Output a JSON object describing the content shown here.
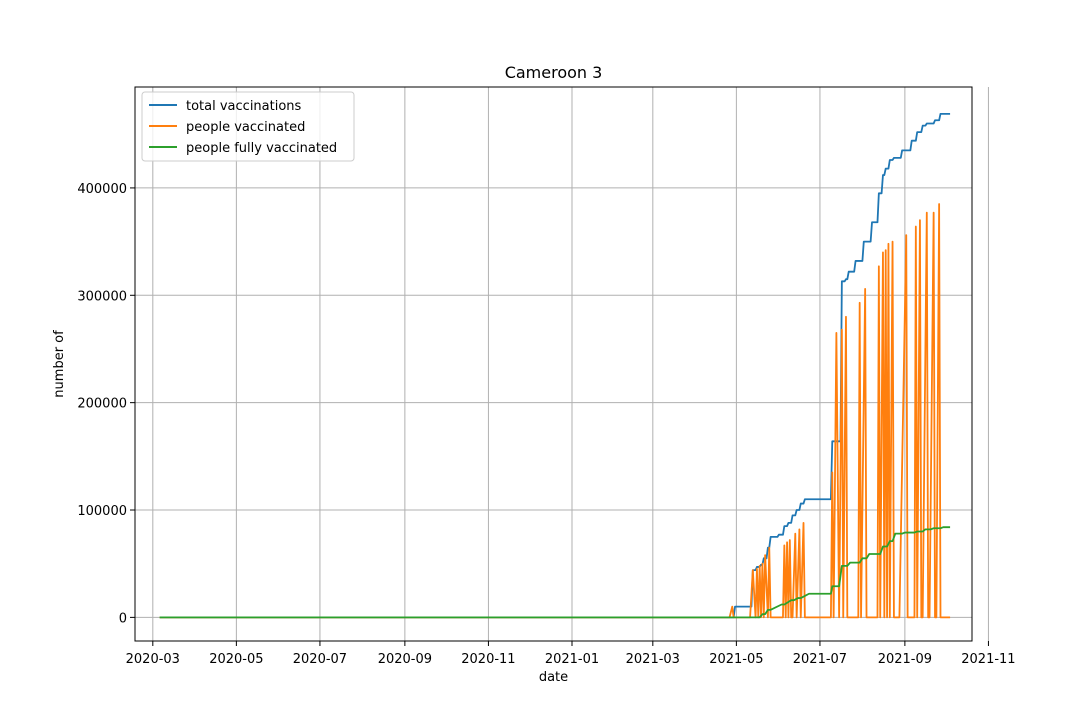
{
  "chart_data": {
    "type": "line",
    "title": "Cameroon 3",
    "xlabel": "date",
    "ylabel": "number of",
    "x_type": "date",
    "xlim": [
      "2020-02-17",
      "2021-10-20"
    ],
    "ylim": [
      -22000,
      494000
    ],
    "grid": true,
    "legend_position": "top-left",
    "x_ticks": [
      {
        "value": "2020-03-01",
        "label": "2020-03"
      },
      {
        "value": "2020-05-01",
        "label": "2020-05"
      },
      {
        "value": "2020-07-01",
        "label": "2020-07"
      },
      {
        "value": "2020-09-01",
        "label": "2020-09"
      },
      {
        "value": "2020-11-01",
        "label": "2020-11"
      },
      {
        "value": "2021-01-01",
        "label": "2021-01"
      },
      {
        "value": "2021-03-01",
        "label": "2021-03"
      },
      {
        "value": "2021-05-01",
        "label": "2021-05"
      },
      {
        "value": "2021-07-01",
        "label": "2021-07"
      },
      {
        "value": "2021-09-01",
        "label": "2021-09"
      },
      {
        "value": "2021-11-01",
        "label": "2021-11"
      }
    ],
    "y_ticks": [
      {
        "value": 0,
        "label": "0"
      },
      {
        "value": 100000,
        "label": "100000"
      },
      {
        "value": 200000,
        "label": "200000"
      },
      {
        "value": 300000,
        "label": "300000"
      },
      {
        "value": 400000,
        "label": "400000"
      }
    ],
    "series": [
      {
        "name": "total vaccinations",
        "color": "#1f77b4",
        "x": [
          "2020-03-06",
          "2021-04-12",
          "2021-04-29",
          "2021-04-30",
          "2021-05-12",
          "2021-05-13",
          "2021-05-15",
          "2021-05-16",
          "2021-05-18",
          "2021-05-19",
          "2021-05-20",
          "2021-05-21",
          "2021-05-23",
          "2021-05-24",
          "2021-05-25",
          "2021-05-26",
          "2021-05-31",
          "2021-06-01",
          "2021-06-04",
          "2021-06-05",
          "2021-06-07",
          "2021-06-08",
          "2021-06-10",
          "2021-06-11",
          "2021-06-13",
          "2021-06-14",
          "2021-06-16",
          "2021-06-17",
          "2021-06-19",
          "2021-06-20",
          "2021-06-22",
          "2021-06-23",
          "2021-06-25",
          "2021-06-26",
          "2021-07-09",
          "2021-07-10",
          "2021-07-16",
          "2021-07-17",
          "2021-07-19",
          "2021-07-20",
          "2021-07-21",
          "2021-07-22",
          "2021-07-26",
          "2021-07-27",
          "2021-08-01",
          "2021-08-02",
          "2021-08-07",
          "2021-08-08",
          "2021-08-12",
          "2021-08-13",
          "2021-08-15",
          "2021-08-16",
          "2021-08-17",
          "2021-08-18",
          "2021-08-20",
          "2021-08-21",
          "2021-08-23",
          "2021-08-24",
          "2021-08-29",
          "2021-08-30",
          "2021-09-05",
          "2021-09-06",
          "2021-09-09",
          "2021-09-10",
          "2021-09-13",
          "2021-09-14",
          "2021-09-16",
          "2021-09-17",
          "2021-09-22",
          "2021-09-23",
          "2021-09-26",
          "2021-09-27",
          "2021-10-04"
        ],
        "values": [
          0,
          0,
          0,
          10000,
          10000,
          44000,
          44000,
          47000,
          47000,
          49000,
          49000,
          55000,
          55000,
          65000,
          65000,
          75000,
          75000,
          77000,
          77000,
          85000,
          85000,
          88000,
          88000,
          95000,
          95000,
          100000,
          100000,
          106000,
          106000,
          110000,
          110000,
          110000,
          110000,
          110000,
          110000,
          164000,
          164000,
          313000,
          313000,
          315000,
          315000,
          322000,
          322000,
          332000,
          332000,
          350000,
          350000,
          368000,
          368000,
          395000,
          395000,
          412000,
          412000,
          418000,
          418000,
          426000,
          426000,
          428000,
          428000,
          435000,
          435000,
          444000,
          444000,
          452000,
          452000,
          458000,
          458000,
          460000,
          460000,
          463000,
          463000,
          469000,
          469000
        ]
      },
      {
        "name": "people vaccinated",
        "color": "#ff7f0e",
        "x": [
          "2020-03-06",
          "2021-04-26",
          "2021-04-28",
          "2021-04-29",
          "2021-04-30",
          "2021-05-11",
          "2021-05-13",
          "2021-05-15",
          "2021-05-16",
          "2021-05-17",
          "2021-05-18",
          "2021-05-19",
          "2021-05-20",
          "2021-05-21",
          "2021-05-22",
          "2021-05-24",
          "2021-05-25",
          "2021-05-26",
          "2021-06-04",
          "2021-06-05",
          "2021-06-06",
          "2021-06-07",
          "2021-06-08",
          "2021-06-09",
          "2021-06-10",
          "2021-06-11",
          "2021-06-13",
          "2021-06-14",
          "2021-06-16",
          "2021-06-17",
          "2021-06-19",
          "2021-06-20",
          "2021-06-22",
          "2021-06-23",
          "2021-07-09",
          "2021-07-10",
          "2021-07-11",
          "2021-07-13",
          "2021-07-15",
          "2021-07-17",
          "2021-07-18",
          "2021-07-20",
          "2021-07-21",
          "2021-07-22",
          "2021-07-23",
          "2021-07-24",
          "2021-07-29",
          "2021-07-30",
          "2021-07-31",
          "2021-08-03",
          "2021-08-04",
          "2021-08-05",
          "2021-08-12",
          "2021-08-13",
          "2021-08-14",
          "2021-08-16",
          "2021-08-17",
          "2021-08-18",
          "2021-08-19",
          "2021-08-20",
          "2021-08-21",
          "2021-08-23",
          "2021-08-24",
          "2021-08-25",
          "2021-08-26",
          "2021-08-27",
          "2021-08-28",
          "2021-09-02",
          "2021-09-03",
          "2021-09-04",
          "2021-09-08",
          "2021-09-09",
          "2021-09-10",
          "2021-09-12",
          "2021-09-13",
          "2021-09-14",
          "2021-09-17",
          "2021-09-18",
          "2021-09-19",
          "2021-09-22",
          "2021-09-23",
          "2021-09-24",
          "2021-09-26",
          "2021-09-27",
          "2021-09-28",
          "2021-10-04"
        ],
        "values": [
          0,
          0,
          10000,
          0,
          0,
          0,
          44000,
          0,
          45000,
          0,
          48000,
          0,
          50000,
          0,
          58000,
          0,
          65000,
          0,
          0,
          67000,
          0,
          70000,
          0,
          72000,
          0,
          0,
          78000,
          0,
          82000,
          0,
          88000,
          0,
          0,
          0,
          0,
          135000,
          0,
          265000,
          0,
          268000,
          0,
          280000,
          0,
          0,
          0,
          0,
          0,
          293000,
          0,
          306000,
          0,
          0,
          0,
          327000,
          0,
          340000,
          0,
          342000,
          0,
          348000,
          0,
          350000,
          0,
          0,
          0,
          0,
          0,
          356000,
          0,
          0,
          0,
          364000,
          0,
          370000,
          0,
          0,
          377000,
          0,
          0,
          377000,
          0,
          0,
          385000,
          0,
          0,
          0
        ]
      },
      {
        "name": "people fully vaccinated",
        "color": "#2ca02c",
        "x": [
          "2020-03-06",
          "2021-05-12",
          "2021-05-18",
          "2021-05-20",
          "2021-05-22",
          "2021-05-24",
          "2021-05-26",
          "2021-06-03",
          "2021-06-05",
          "2021-06-10",
          "2021-06-12",
          "2021-06-15",
          "2021-06-17",
          "2021-06-20",
          "2021-06-23",
          "2021-07-09",
          "2021-07-10",
          "2021-07-15",
          "2021-07-17",
          "2021-07-21",
          "2021-07-23",
          "2021-07-30",
          "2021-08-01",
          "2021-08-04",
          "2021-08-06",
          "2021-08-14",
          "2021-08-16",
          "2021-08-19",
          "2021-08-21",
          "2021-08-23",
          "2021-08-25",
          "2021-08-30",
          "2021-09-01",
          "2021-09-08",
          "2021-09-10",
          "2021-09-14",
          "2021-09-16",
          "2021-09-20",
          "2021-09-22",
          "2021-09-27",
          "2021-09-29",
          "2021-10-04"
        ],
        "values": [
          0,
          0,
          0,
          3000,
          3000,
          7000,
          7000,
          12000,
          12000,
          16000,
          16000,
          18000,
          18000,
          20000,
          22000,
          22000,
          29000,
          29000,
          48000,
          48000,
          51000,
          51000,
          55000,
          55000,
          59000,
          59000,
          66000,
          66000,
          71000,
          71000,
          78000,
          78000,
          79000,
          79000,
          80000,
          80000,
          82000,
          82000,
          83000,
          83000,
          84000,
          84000
        ]
      }
    ]
  }
}
